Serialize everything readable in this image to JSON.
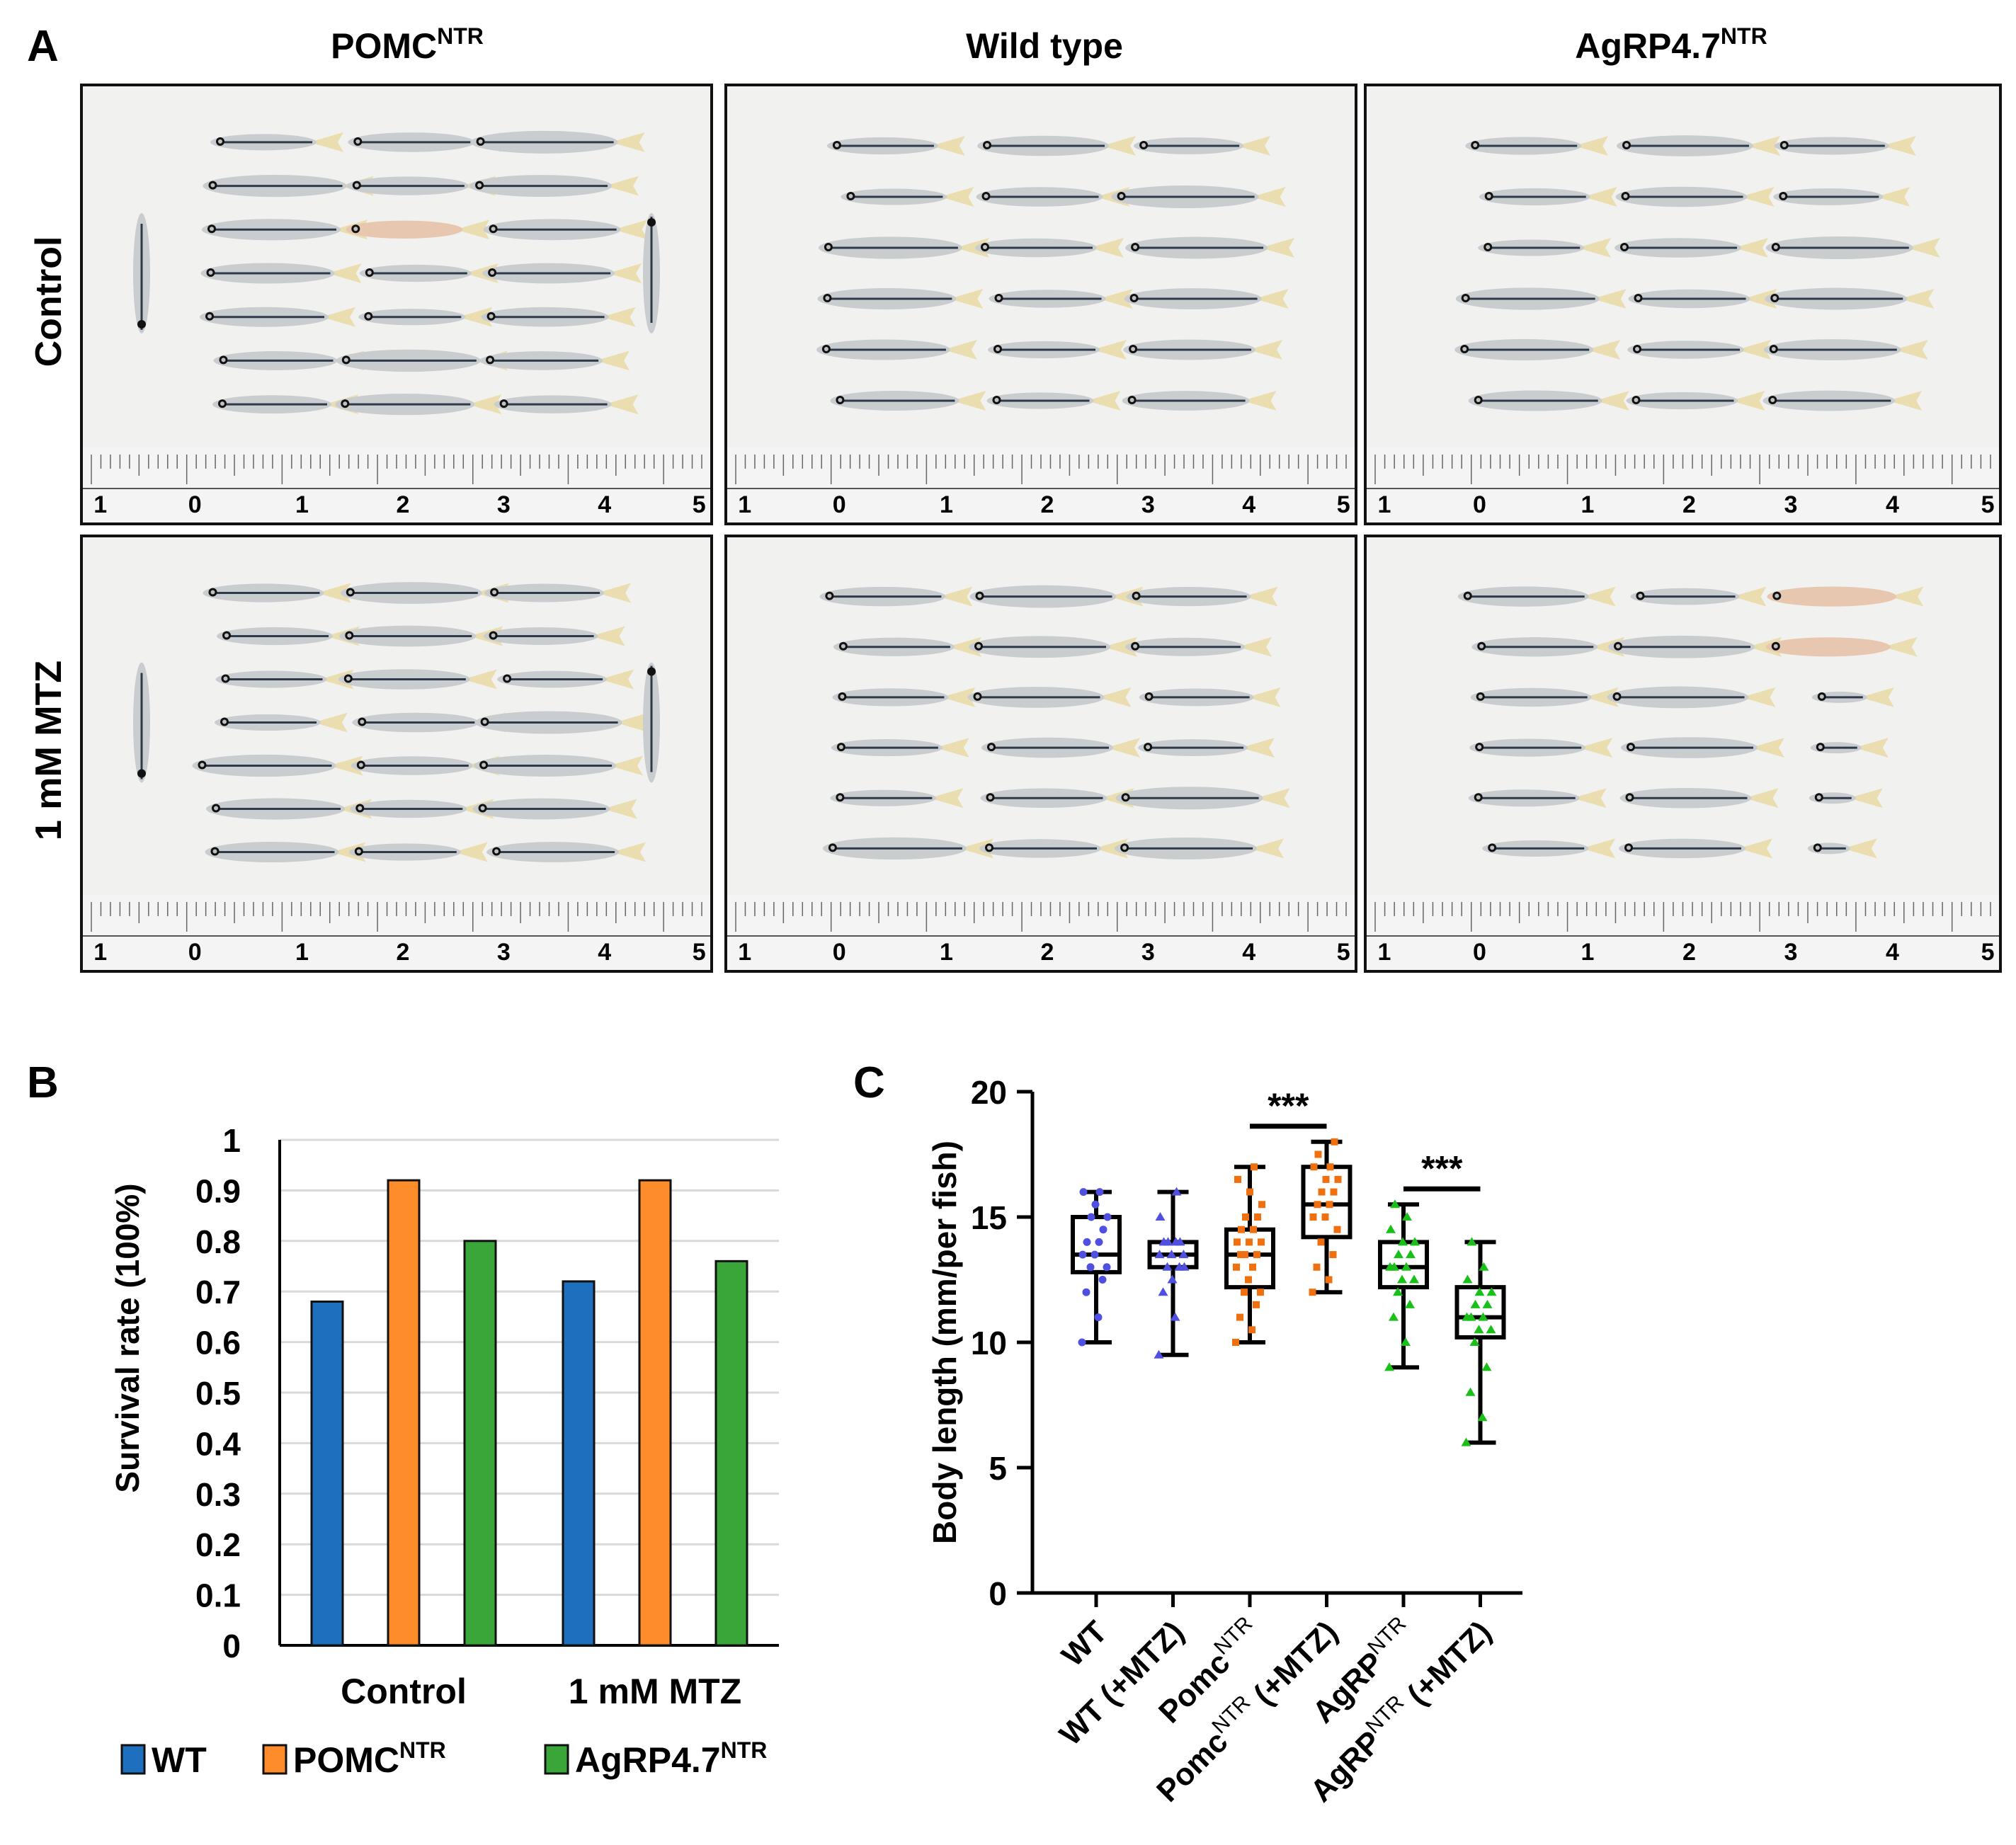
{
  "panel_a": {
    "label": "A",
    "columns": [
      {
        "name": "POMC",
        "sup": "NTR"
      },
      {
        "name": "Wild type",
        "sup": ""
      },
      {
        "name": "AgRP4.7",
        "sup": "NTR"
      }
    ],
    "rows": [
      "Control",
      "1 mM MTZ"
    ],
    "ruler_labels": [
      "1",
      "0",
      "1",
      "2",
      "3",
      "4",
      "5"
    ],
    "fish_layouts": {
      "pomc_control": [
        7,
        7,
        7
      ],
      "wt_control": [
        6,
        6,
        6
      ],
      "agrp_control": [
        6,
        6,
        6
      ],
      "pomc_mtz": [
        7,
        7,
        7
      ],
      "wt_mtz": [
        6,
        6,
        6
      ],
      "agrp_mtz": [
        6,
        6,
        6
      ]
    },
    "colors": {
      "photo_bg": "#f1f1ef",
      "fish_body": "#c9cdd0",
      "fish_stripe": "#2e3a4a",
      "fish_fin": "#e8d9a0",
      "pale_fish": "#e8c7b0"
    }
  },
  "chart_data": [
    {
      "type": "bar",
      "panel_label": "B",
      "categories": [
        "Control",
        "1 mM MTZ"
      ],
      "series": [
        {
          "name": "WT",
          "sup": "",
          "color": "#1f6fbf",
          "values": [
            0.68,
            0.72
          ]
        },
        {
          "name": "POMC",
          "sup": "NTR",
          "color": "#ff8c2a",
          "values": [
            0.92,
            0.92
          ]
        },
        {
          "name": "AgRP4.7",
          "sup": "NTR",
          "color": "#3aa63a",
          "values": [
            0.8,
            0.76
          ]
        }
      ],
      "ylabel": "Survival rate (100%)",
      "ylim": [
        0,
        1
      ],
      "yticks": [
        "0",
        "0.1",
        "0.2",
        "0.3",
        "0.4",
        "0.5",
        "0.6",
        "0.7",
        "0.8",
        "0.9",
        "1"
      ],
      "grid": true,
      "legend_position": "bottom"
    },
    {
      "type": "boxplot",
      "panel_label": "C",
      "ylabel": "Body length (mm/per fish)",
      "ylim": [
        0,
        20
      ],
      "yticks": [
        "0",
        "5",
        "10",
        "15",
        "20"
      ],
      "groups": [
        {
          "name": "WT",
          "sup": "",
          "suffix": "",
          "color": "#5050e0",
          "marker": "circle",
          "min": 10,
          "q1": 12.8,
          "median": 13.5,
          "q3": 15,
          "max": 16,
          "points": [
            10,
            11,
            12,
            12.5,
            13,
            13,
            13.5,
            13.5,
            14,
            14,
            14.5,
            15,
            15,
            15.5,
            16,
            16
          ]
        },
        {
          "name": "WT (+MTZ)",
          "sup": "",
          "suffix": "",
          "color": "#5050e0",
          "marker": "triangle",
          "min": 9.5,
          "q1": 13,
          "median": 13.5,
          "q3": 14,
          "max": 16,
          "points": [
            9.5,
            11,
            12,
            13,
            13,
            13.5,
            13.5,
            13.5,
            14,
            14,
            14,
            14,
            13,
            12.5,
            15,
            16
          ]
        },
        {
          "name": "Pomc",
          "sup": "NTR",
          "suffix": "",
          "color": "#f07010",
          "marker": "square",
          "min": 10,
          "q1": 12.2,
          "median": 13.5,
          "q3": 14.5,
          "max": 17,
          "points": [
            10,
            10.5,
            11,
            11.5,
            12,
            12,
            12.5,
            13,
            13,
            13.5,
            13.5,
            13.5,
            14,
            14,
            14,
            14.5,
            14.5,
            15,
            15,
            15.5,
            16,
            16.5,
            17
          ]
        },
        {
          "name": "Pomc",
          "sup": "NTR",
          "suffix": " (+MTZ)",
          "color": "#f07010",
          "marker": "square",
          "min": 12,
          "q1": 14.2,
          "median": 15.5,
          "q3": 17,
          "max": 18,
          "points": [
            12,
            12.5,
            13,
            13.5,
            14,
            14.5,
            15,
            15,
            15.5,
            15.5,
            16,
            16,
            16.5,
            16.5,
            17,
            17,
            17.5,
            18
          ]
        },
        {
          "name": "AgRP",
          "sup": "NTR",
          "suffix": "",
          "color": "#18c018",
          "marker": "triangle",
          "min": 9,
          "q1": 12.2,
          "median": 13,
          "q3": 14,
          "max": 15.5,
          "points": [
            9,
            10,
            11,
            11.5,
            12,
            12.5,
            12.5,
            13,
            13,
            13,
            13.5,
            13.5,
            14,
            14,
            14.5,
            15,
            15.5
          ]
        },
        {
          "name": "AgRP",
          "sup": "NTR",
          "suffix": " (+MTZ)",
          "color": "#18c018",
          "marker": "triangle",
          "min": 6,
          "q1": 10.2,
          "median": 11,
          "q3": 12.2,
          "max": 14,
          "points": [
            6,
            7,
            8,
            9,
            10,
            10.5,
            10.5,
            11,
            11,
            11,
            11.5,
            11.5,
            12,
            12,
            12.5,
            13,
            14
          ]
        }
      ],
      "significance": [
        {
          "from": 2,
          "to": 3,
          "label": "***"
        },
        {
          "from": 4,
          "to": 5,
          "label": "***"
        }
      ]
    }
  ]
}
